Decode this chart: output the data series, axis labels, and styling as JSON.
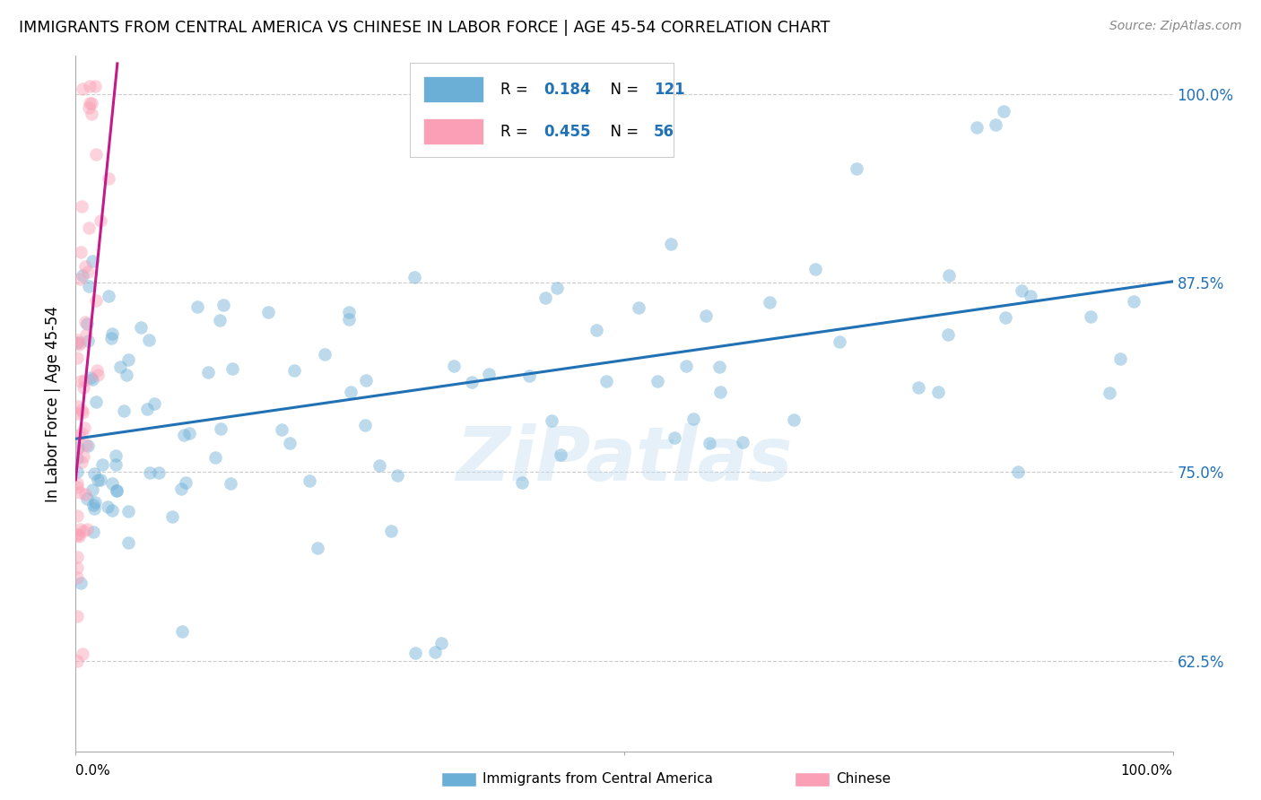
{
  "title": "IMMIGRANTS FROM CENTRAL AMERICA VS CHINESE IN LABOR FORCE | AGE 45-54 CORRELATION CHART",
  "source": "Source: ZipAtlas.com",
  "ylabel": "In Labor Force | Age 45-54",
  "y_tick_labels": [
    "62.5%",
    "75.0%",
    "87.5%",
    "100.0%"
  ],
  "y_tick_values": [
    0.625,
    0.75,
    0.875,
    1.0
  ],
  "x_range": [
    0.0,
    1.0
  ],
  "y_range": [
    0.565,
    1.025
  ],
  "legend_blue_r": "0.184",
  "legend_blue_n": "121",
  "legend_pink_r": "0.455",
  "legend_pink_n": "56",
  "legend_label_blue": "Immigrants from Central America",
  "legend_label_pink": "Chinese",
  "blue_color": "#6baed6",
  "blue_line_color": "#2171b5",
  "pink_color": "#fa9fb5",
  "pink_line_color": "#c51b8a",
  "watermark": "ZiPatlas",
  "blue_trend_x": [
    0.0,
    1.0
  ],
  "blue_trend_y": [
    0.772,
    0.876
  ],
  "pink_trend_x": [
    0.0,
    0.038
  ],
  "pink_trend_y": [
    0.745,
    1.02
  ],
  "right_y_color": "#2171b5",
  "grid_color": "#cccccc",
  "spine_color": "#aaaaaa"
}
